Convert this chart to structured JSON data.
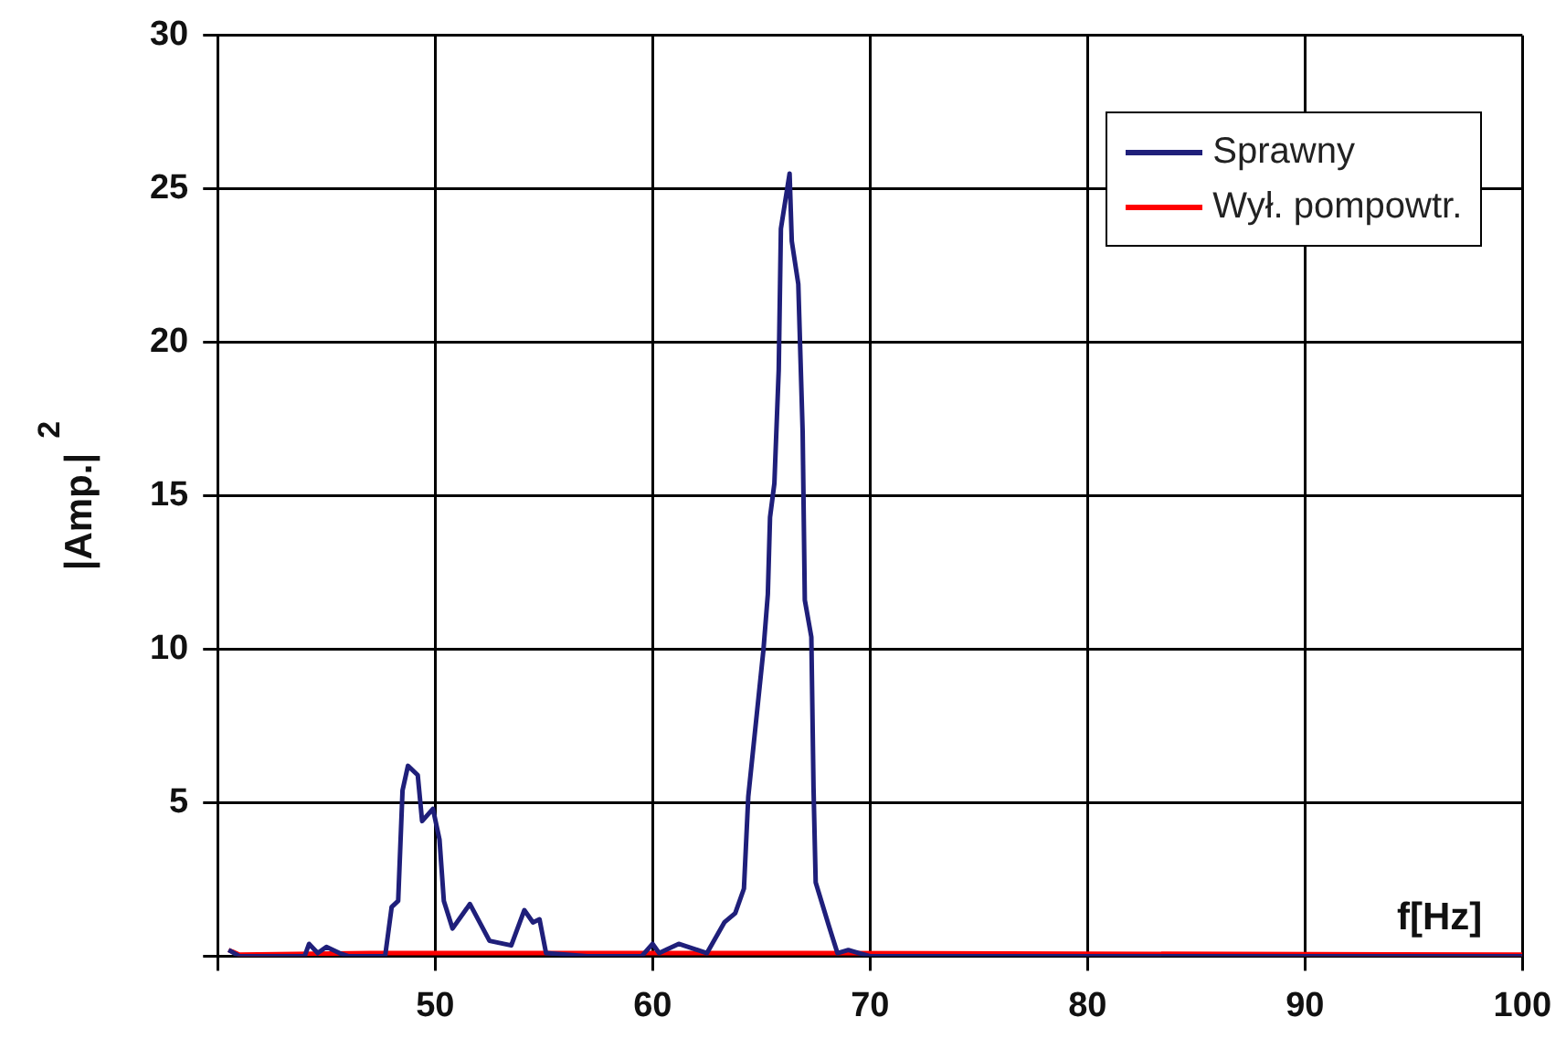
{
  "chart_data": {
    "type": "line",
    "xlabel": "f[Hz]",
    "ylabel": "|Amp.|$^{2}$",
    "xlim": [
      40,
      100
    ],
    "xticks": [
      {
        "value": 40,
        "label": null
      },
      50,
      60,
      70,
      80,
      90,
      100
    ],
    "ylim": [
      0,
      30
    ],
    "yticks": [
      {
        "value": 0,
        "label": null
      },
      5,
      10,
      15,
      20,
      25,
      30
    ],
    "grid": true,
    "legend": "top right",
    "marker": "none",
    "line_style": "solid",
    "series": [
      {
        "name": "Sprawny",
        "color": "#1f1f7a",
        "x": [
          40.5,
          41,
          44,
          44.2,
          44.6,
          45,
          45.6,
          46,
          47.7,
          48,
          48.3,
          48.5,
          48.75,
          49.2,
          49.4,
          49.9,
          50.2,
          50.4,
          50.8,
          51.6,
          52.5,
          53.5,
          54.1,
          54.5,
          54.8,
          55.1,
          57,
          59.5,
          60,
          60.3,
          61.2,
          62.5,
          63.3,
          63.8,
          64.2,
          64.4,
          65.1,
          65.3,
          65.4,
          65.6,
          65.8,
          65.9,
          66.3,
          66.4,
          66.7,
          66.9,
          67,
          67.3,
          67.4,
          67.5,
          68.1,
          68.5,
          69,
          69.5,
          70,
          100
        ],
        "values": [
          0.2,
          0,
          0,
          0.4,
          0.1,
          0.3,
          0.1,
          0,
          0,
          1.6,
          1.8,
          5.4,
          6.2,
          5.9,
          4.4,
          4.8,
          3.8,
          1.8,
          0.9,
          1.7,
          0.5,
          0.35,
          1.5,
          1.1,
          1.2,
          0.1,
          0,
          0,
          0.4,
          0.1,
          0.4,
          0.1,
          1.1,
          1.4,
          2.2,
          5.2,
          10,
          11.8,
          14.3,
          15.4,
          19.1,
          23.7,
          25.5,
          23.3,
          21.9,
          17.1,
          11.6,
          10.4,
          5.5,
          2.4,
          1,
          0.1,
          0.2,
          0.1,
          0,
          0
        ]
      },
      {
        "name": "Wył. pompowtr.",
        "color": "#ff0000",
        "x": [
          40.5,
          41,
          47,
          48,
          65.5,
          67,
          100
        ],
        "values": [
          0.2,
          0.05,
          0.1,
          0.1,
          0.1,
          0.1,
          0.05
        ]
      }
    ]
  }
}
